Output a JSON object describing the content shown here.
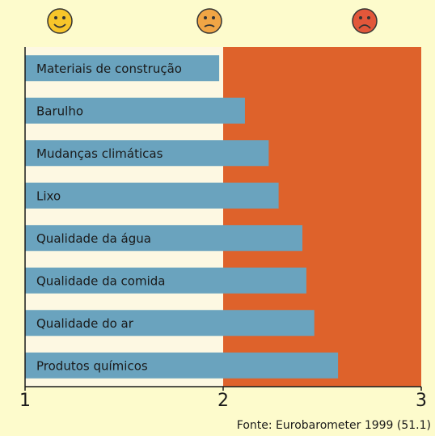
{
  "chart_data": {
    "type": "bar",
    "orientation": "horizontal",
    "categories": [
      "Materiais de construção",
      "Barulho",
      "Mudanças climáticas",
      "Lixo",
      "Qualidade da água",
      "Qualidade da comida",
      "Qualidade do ar",
      "Produtos químicos"
    ],
    "values": [
      1.98,
      2.11,
      2.23,
      2.28,
      2.4,
      2.42,
      2.46,
      2.58
    ],
    "color": "#6aa3be",
    "xlim": [
      1,
      3
    ],
    "xticks": [
      1,
      2,
      3
    ],
    "annotations": [
      "Fonte: Eurobarometer 1999 (51.1)"
    ]
  }
}
